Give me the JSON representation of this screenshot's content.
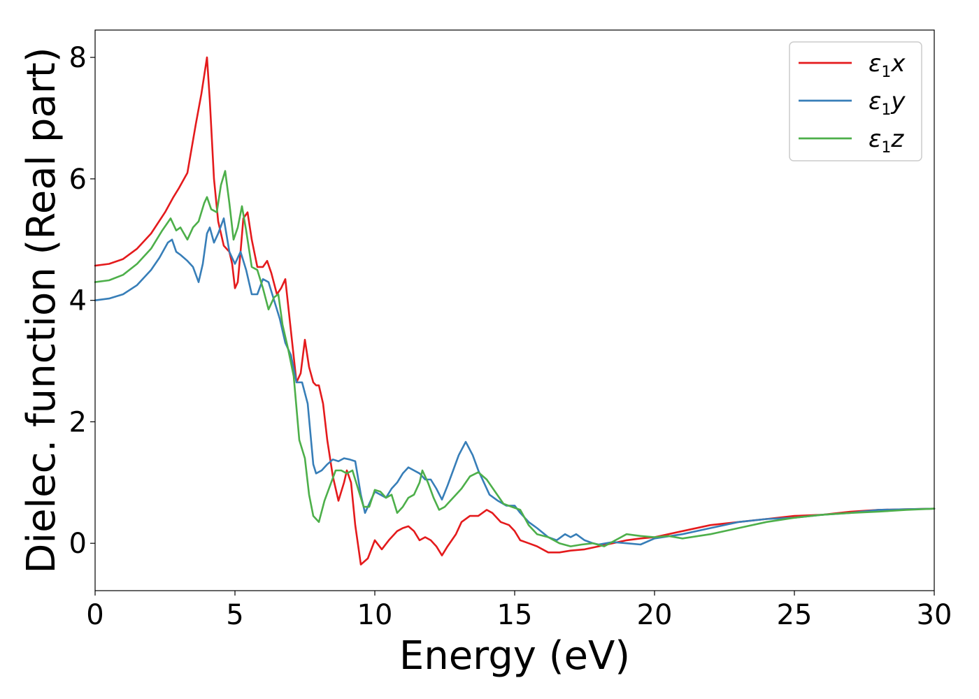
{
  "chart_data": {
    "type": "line",
    "title": "",
    "xlabel": "Energy (eV)",
    "ylabel": "Dielec. function (Real part)",
    "xlim": [
      0,
      30
    ],
    "ylim": [
      -0.78,
      8.45
    ],
    "xticks": [
      0,
      5,
      10,
      15,
      20,
      25,
      30
    ],
    "yticks": [
      0,
      2,
      4,
      6,
      8
    ],
    "grid": false,
    "legend_position": "top-right",
    "series": [
      {
        "name": "ε1x",
        "legend": {
          "base": "ε",
          "sub": "1",
          "suffix": "x"
        },
        "color": "#e41a1c",
        "x": [
          0,
          0.5,
          1,
          1.5,
          2,
          2.5,
          2.8,
          3,
          3.3,
          3.6,
          3.8,
          3.9,
          4.0,
          4.1,
          4.25,
          4.4,
          4.6,
          4.8,
          4.9,
          5.0,
          5.1,
          5.2,
          5.3,
          5.45,
          5.6,
          5.8,
          6.0,
          6.15,
          6.3,
          6.5,
          6.65,
          6.8,
          7.0,
          7.2,
          7.35,
          7.5,
          7.65,
          7.8,
          7.9,
          8.0,
          8.15,
          8.3,
          8.5,
          8.7,
          8.9,
          9.0,
          9.15,
          9.3,
          9.5,
          9.75,
          10.0,
          10.25,
          10.5,
          10.8,
          11.0,
          11.2,
          11.4,
          11.6,
          11.8,
          12.0,
          12.2,
          12.4,
          12.6,
          12.9,
          13.1,
          13.4,
          13.7,
          14.0,
          14.2,
          14.5,
          14.8,
          15.0,
          15.2,
          15.5,
          15.8,
          16.2,
          16.6,
          17.0,
          17.5,
          18.0,
          18.5,
          19.0,
          19.5,
          20.0,
          21.0,
          22.0,
          23.0,
          24.0,
          25.0,
          26.0,
          27.0,
          28.0,
          29.0,
          30.0
        ],
        "y": [
          4.57,
          4.6,
          4.68,
          4.85,
          5.1,
          5.45,
          5.7,
          5.85,
          6.1,
          6.9,
          7.4,
          7.7,
          8.0,
          7.3,
          6.0,
          5.3,
          4.9,
          4.8,
          4.6,
          4.2,
          4.3,
          4.8,
          5.35,
          5.45,
          5.0,
          4.55,
          4.55,
          4.65,
          4.45,
          4.1,
          4.2,
          4.35,
          3.5,
          2.65,
          2.8,
          3.35,
          2.9,
          2.65,
          2.6,
          2.6,
          2.3,
          1.7,
          1.1,
          0.7,
          1.0,
          1.2,
          1.0,
          0.3,
          -0.35,
          -0.25,
          0.05,
          -0.1,
          0.05,
          0.2,
          0.25,
          0.28,
          0.2,
          0.05,
          0.1,
          0.05,
          -0.05,
          -0.2,
          -0.05,
          0.15,
          0.35,
          0.45,
          0.45,
          0.55,
          0.5,
          0.35,
          0.3,
          0.2,
          0.05,
          0.0,
          -0.05,
          -0.15,
          -0.15,
          -0.12,
          -0.1,
          -0.05,
          0.0,
          0.05,
          0.08,
          0.1,
          0.2,
          0.3,
          0.35,
          0.4,
          0.45,
          0.47,
          0.52,
          0.55,
          0.56,
          0.57
        ]
      },
      {
        "name": "ε1y",
        "legend": {
          "base": "ε",
          "sub": "1",
          "suffix": "y"
        },
        "color": "#377eb8",
        "x": [
          0,
          0.5,
          1,
          1.5,
          2,
          2.3,
          2.6,
          2.75,
          2.9,
          3.05,
          3.3,
          3.5,
          3.7,
          3.85,
          4.0,
          4.1,
          4.25,
          4.4,
          4.6,
          4.8,
          5.0,
          5.2,
          5.4,
          5.6,
          5.8,
          6.0,
          6.2,
          6.4,
          6.6,
          6.8,
          7.0,
          7.2,
          7.4,
          7.6,
          7.8,
          7.9,
          8.1,
          8.3,
          8.5,
          8.7,
          8.9,
          9.1,
          9.3,
          9.5,
          9.65,
          9.8,
          10.0,
          10.2,
          10.4,
          10.6,
          10.8,
          11.0,
          11.2,
          11.4,
          11.6,
          11.8,
          12.0,
          12.2,
          12.4,
          12.6,
          12.8,
          13.0,
          13.25,
          13.5,
          13.7,
          13.9,
          14.1,
          14.4,
          14.7,
          15.0,
          15.2,
          15.5,
          15.8,
          16.2,
          16.5,
          16.8,
          17.0,
          17.2,
          17.5,
          17.8,
          18.0,
          18.5,
          19.0,
          19.5,
          20.0,
          21.0,
          22.0,
          23.0,
          24.0,
          25.0,
          26.0,
          27.0,
          28.0,
          29.0,
          30.0
        ],
        "y": [
          4.0,
          4.03,
          4.1,
          4.25,
          4.5,
          4.7,
          4.95,
          5.0,
          4.8,
          4.75,
          4.65,
          4.55,
          4.3,
          4.6,
          5.1,
          5.2,
          4.95,
          5.1,
          5.35,
          4.8,
          4.6,
          4.8,
          4.5,
          4.1,
          4.1,
          4.35,
          4.3,
          4.0,
          3.7,
          3.3,
          3.1,
          2.65,
          2.65,
          2.3,
          1.3,
          1.15,
          1.2,
          1.3,
          1.38,
          1.35,
          1.4,
          1.38,
          1.35,
          0.8,
          0.5,
          0.65,
          0.85,
          0.8,
          0.75,
          0.9,
          1.0,
          1.15,
          1.25,
          1.2,
          1.15,
          1.05,
          1.05,
          0.9,
          0.72,
          0.95,
          1.2,
          1.45,
          1.67,
          1.45,
          1.2,
          1.0,
          0.8,
          0.7,
          0.62,
          0.62,
          0.5,
          0.35,
          0.25,
          0.1,
          0.05,
          0.15,
          0.1,
          0.15,
          0.05,
          0.0,
          -0.02,
          0.02,
          0.0,
          -0.02,
          0.08,
          0.15,
          0.25,
          0.35,
          0.4,
          0.42,
          0.47,
          0.5,
          0.55,
          0.56,
          0.57
        ]
      },
      {
        "name": "ε1z",
        "legend": {
          "base": "ε",
          "sub": "1",
          "suffix": "z"
        },
        "color": "#4daf4a",
        "x": [
          0,
          0.5,
          1,
          1.5,
          2,
          2.4,
          2.7,
          2.9,
          3.05,
          3.3,
          3.5,
          3.7,
          3.9,
          4.0,
          4.15,
          4.35,
          4.5,
          4.65,
          4.8,
          4.95,
          5.1,
          5.25,
          5.4,
          5.6,
          5.8,
          6.0,
          6.2,
          6.4,
          6.55,
          6.7,
          6.9,
          7.1,
          7.3,
          7.5,
          7.65,
          7.8,
          8.0,
          8.2,
          8.4,
          8.6,
          8.8,
          9.0,
          9.2,
          9.4,
          9.6,
          9.8,
          10.0,
          10.2,
          10.4,
          10.6,
          10.8,
          11.0,
          11.2,
          11.4,
          11.6,
          11.7,
          11.9,
          12.1,
          12.3,
          12.5,
          12.7,
          12.9,
          13.1,
          13.4,
          13.7,
          14.0,
          14.3,
          14.6,
          14.9,
          15.2,
          15.5,
          15.8,
          16.2,
          16.6,
          17.0,
          17.4,
          17.8,
          18.2,
          18.6,
          19.0,
          19.5,
          20.0,
          20.5,
          21.0,
          22.0,
          23.0,
          24.0,
          25.0,
          26.0,
          27.0,
          28.0,
          29.0,
          30.0
        ],
        "y": [
          4.3,
          4.33,
          4.42,
          4.6,
          4.85,
          5.15,
          5.35,
          5.15,
          5.2,
          5.0,
          5.2,
          5.3,
          5.6,
          5.7,
          5.5,
          5.45,
          5.9,
          6.13,
          5.6,
          5.0,
          5.2,
          5.55,
          5.15,
          4.55,
          4.5,
          4.2,
          3.85,
          4.05,
          4.1,
          3.6,
          3.2,
          2.75,
          1.7,
          1.4,
          0.8,
          0.45,
          0.35,
          0.7,
          0.95,
          1.2,
          1.2,
          1.15,
          1.2,
          0.9,
          0.6,
          0.6,
          0.88,
          0.85,
          0.75,
          0.8,
          0.5,
          0.6,
          0.75,
          0.8,
          1.0,
          1.2,
          1.0,
          0.75,
          0.55,
          0.6,
          0.7,
          0.8,
          0.9,
          1.1,
          1.17,
          1.05,
          0.85,
          0.65,
          0.6,
          0.55,
          0.3,
          0.15,
          0.1,
          0.0,
          -0.05,
          -0.02,
          0.0,
          -0.05,
          0.05,
          0.15,
          0.12,
          0.1,
          0.12,
          0.08,
          0.15,
          0.25,
          0.35,
          0.42,
          0.47,
          0.5,
          0.52,
          0.55,
          0.57
        ]
      }
    ]
  }
}
